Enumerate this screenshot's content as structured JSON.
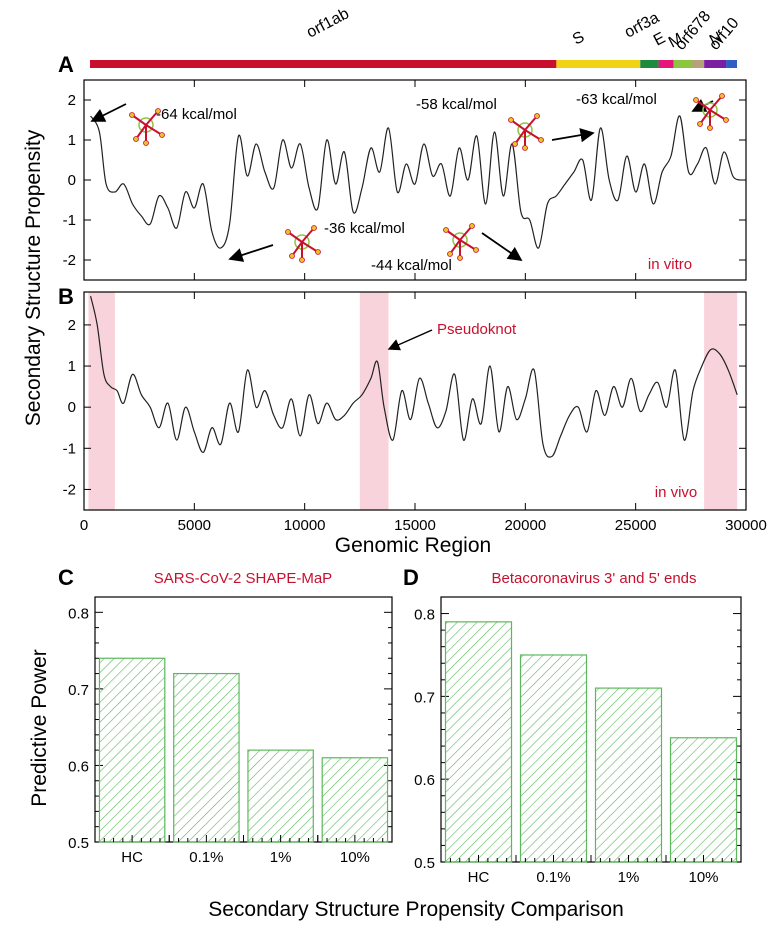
{
  "y_axis_title_top": "Secondary Structure Propensity",
  "x_axis_title_top": "Genomic Region",
  "y_axis_title_bottom": "Predictive Power",
  "x_axis_title_bottom": "Secondary Structure Propensity Comparison",
  "panel_letters": [
    "A",
    "B",
    "C",
    "D"
  ],
  "colors": {
    "line": "#222222",
    "highlight": "#f9d3db",
    "bar_hatch": "#5cb85c",
    "accent_red": "#c8102e"
  },
  "genome_map": {
    "genes": [
      {
        "label": "orf1ab",
        "start": 266,
        "end": 21555,
        "color": "#c8102e"
      },
      {
        "label": "S",
        "start": 21555,
        "end": 25384,
        "color": "#f2d214"
      },
      {
        "label": "orf3a",
        "start": 25384,
        "end": 26220,
        "color": "#1e8a3e"
      },
      {
        "label": "E",
        "start": 26220,
        "end": 26900,
        "color": "#e6157b"
      },
      {
        "label": "M",
        "start": 26900,
        "end": 27700,
        "color": "#8cc63f"
      },
      {
        "label": "orf678",
        "start": 27700,
        "end": 28300,
        "color": "#b5a27a"
      },
      {
        "label": "N",
        "start": 28300,
        "end": 29300,
        "color": "#7b1fa2"
      },
      {
        "label": "orf10",
        "start": 29300,
        "end": 29800,
        "color": "#2f5fc4"
      }
    ]
  },
  "chart_data": [
    {
      "panel": "A",
      "type": "line",
      "xlim": [
        0,
        30000
      ],
      "ylim": [
        -2.5,
        2.5
      ],
      "yticks": [
        -2,
        -1,
        0,
        1,
        2
      ],
      "condition_label": "in vitro",
      "annotations": [
        "-64 kcal/mol",
        "-58 kcal/mol",
        "-63 kcal/mol",
        "-36 kcal/mol",
        "-44  kcal/mol"
      ],
      "series": [
        {
          "x": [
            300,
            700,
            1000,
            1400,
            1800,
            2200,
            2600,
            3000,
            3400,
            3800,
            4200,
            4600,
            5000,
            5400,
            5800,
            6200,
            6600,
            7000,
            7400,
            7800,
            8200,
            8600,
            9000,
            9400,
            9800,
            10200,
            10600,
            11000,
            11400,
            11800,
            12200,
            12600,
            13000,
            13400,
            13800,
            14200,
            14600,
            15000,
            15400,
            15800,
            16200,
            16600,
            17000,
            17400,
            17800,
            18200,
            18600,
            19000,
            19400,
            19800,
            20200,
            20600,
            21000,
            21400,
            21800,
            22200,
            22600,
            23000,
            23400,
            23800,
            24200,
            24600,
            25000,
            25400,
            25800,
            26200,
            26600,
            27000,
            27400,
            27800,
            28200,
            28600,
            29000,
            29400,
            29700
          ],
          "y": [
            1.6,
            1.2,
            -0.1,
            -0.3,
            -0.1,
            -0.6,
            -0.9,
            -1.1,
            -0.4,
            -0.7,
            -1.2,
            -0.3,
            -0.7,
            -0.1,
            -1.3,
            -1.7,
            -1.1,
            1.1,
            0.1,
            0.9,
            0.2,
            -0.2,
            1.0,
            0.3,
            0.9,
            -0.2,
            -0.7,
            1.0,
            -0.1,
            0.7,
            -0.8,
            -0.2,
            0.8,
            0.2,
            1.3,
            -0.3,
            0.4,
            -0.1,
            0.9,
            0.1,
            0.4,
            -0.4,
            0.8,
            0.0,
            1.1,
            -0.6,
            1.2,
            -0.4,
            0.9,
            -0.8,
            -1.0,
            -1.7,
            -0.6,
            -0.4,
            -0.1,
            0.2,
            0.5,
            -0.5,
            1.3,
            0.0,
            -0.5,
            0.6,
            -0.3,
            0.4,
            -0.6,
            0.2,
            0.6,
            1.6,
            0.2,
            0.4,
            0.8,
            -0.1,
            0.7,
            0.1,
            0.0
          ]
        }
      ]
    },
    {
      "panel": "B",
      "type": "line",
      "xlim": [
        0,
        30000
      ],
      "xticks": [
        0,
        5000,
        10000,
        15000,
        20000,
        25000,
        30000
      ],
      "ylim": [
        -2.5,
        2.8
      ],
      "yticks": [
        -2,
        -1,
        0,
        1,
        2
      ],
      "condition_label": "in vivo",
      "annotations": [
        "Pseudoknot"
      ],
      "highlights": [
        [
          200,
          1400
        ],
        [
          12500,
          13800
        ],
        [
          28100,
          29600
        ]
      ],
      "series": [
        {
          "x": [
            300,
            600,
            900,
            1200,
            1500,
            1800,
            2200,
            2600,
            3000,
            3400,
            3800,
            4200,
            4600,
            5000,
            5400,
            5800,
            6200,
            6600,
            7000,
            7400,
            7800,
            8200,
            8600,
            9000,
            9400,
            9800,
            10200,
            10600,
            11000,
            11400,
            11800,
            12200,
            12600,
            13000,
            13300,
            13600,
            14000,
            14400,
            14800,
            15200,
            15600,
            16000,
            16400,
            16800,
            17200,
            17600,
            18000,
            18400,
            18800,
            19200,
            19600,
            20000,
            20400,
            20800,
            21200,
            21600,
            22000,
            22400,
            22800,
            23200,
            23600,
            24000,
            24400,
            24800,
            25200,
            25600,
            26000,
            26400,
            26800,
            27200,
            27600,
            28000,
            28400,
            28800,
            29200,
            29600
          ],
          "y": [
            2.7,
            2.0,
            0.8,
            0.5,
            0.4,
            0.1,
            0.8,
            0.3,
            0.0,
            -0.5,
            0.1,
            -0.8,
            0.0,
            -0.6,
            -1.1,
            -0.5,
            -0.9,
            0.1,
            -0.6,
            0.9,
            0.0,
            0.4,
            -0.2,
            -0.5,
            0.2,
            -0.7,
            0.3,
            -0.4,
            0.1,
            -0.3,
            -0.2,
            0.1,
            0.3,
            0.7,
            1.1,
            0.0,
            -0.8,
            0.4,
            -0.3,
            0.7,
            0.1,
            -0.5,
            -0.1,
            0.8,
            -0.8,
            0.2,
            -0.4,
            1.0,
            -0.6,
            0.5,
            -0.3,
            0.2,
            0.9,
            -0.9,
            -1.2,
            -0.7,
            -0.2,
            0.0,
            -0.6,
            0.4,
            -0.2,
            0.5,
            0.0,
            0.7,
            -0.1,
            0.3,
            0.6,
            0.0,
            0.9,
            -0.8,
            0.4,
            1.0,
            1.4,
            1.3,
            0.9,
            0.3
          ]
        }
      ]
    },
    {
      "panel": "C",
      "type": "bar",
      "title": "SARS-CoV-2  SHAPE-MaP",
      "categories": [
        "HC",
        "0.1%",
        "1%",
        "10%"
      ],
      "values": [
        0.74,
        0.72,
        0.62,
        0.61
      ],
      "ylim": [
        0.5,
        0.82
      ],
      "yticks": [
        0.5,
        0.6,
        0.7,
        0.8
      ]
    },
    {
      "panel": "D",
      "type": "bar",
      "title": "Betacoronavirus 3' and 5' ends",
      "categories": [
        "HC",
        "0.1%",
        "1%",
        "10%"
      ],
      "values": [
        0.79,
        0.75,
        0.71,
        0.65
      ],
      "ylim": [
        0.5,
        0.82
      ],
      "yticks": [
        0.5,
        0.6,
        0.7,
        0.8
      ]
    }
  ]
}
